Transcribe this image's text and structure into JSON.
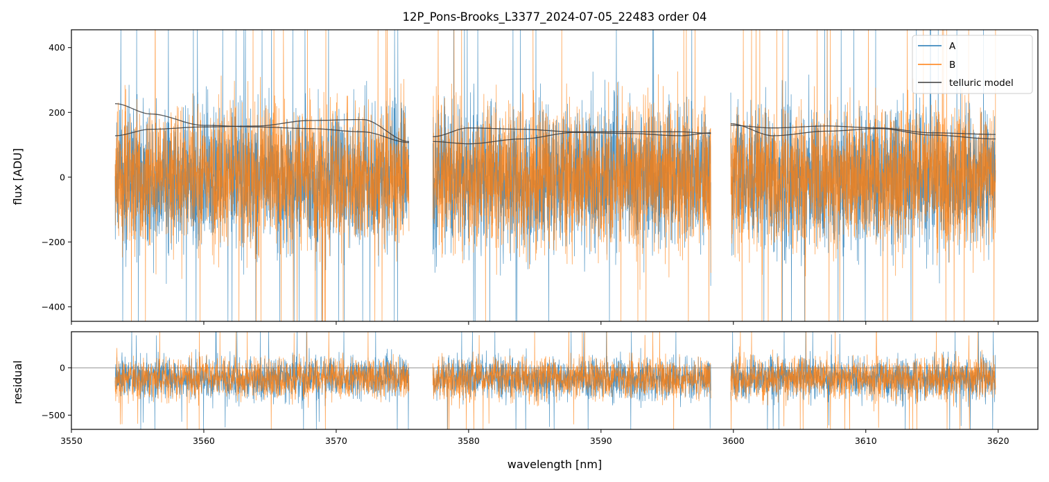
{
  "chart_data": [
    {
      "type": "line",
      "panel": "main",
      "title": "12P_Pons-Brooks_L3377_2024-07-05_22483  order 04",
      "xlabel": "",
      "ylabel": "flux [ADU]",
      "xlim": [
        3550,
        3623
      ],
      "ylim": [
        -445,
        455
      ],
      "yticks": [
        -400,
        -200,
        0,
        200,
        400
      ],
      "ytick_labels": [
        "−400",
        "−200",
        "0",
        "200",
        "400"
      ],
      "grid": false,
      "legend_position": "top-right",
      "segments": [
        [
          3553.3,
          3575.5
        ],
        [
          3577.3,
          3598.3
        ],
        [
          3599.8,
          3619.8
        ]
      ],
      "series": [
        {
          "name": "A",
          "color": "#1f77b4",
          "kind": "noisy",
          "center": 0,
          "spread": 150,
          "clip": [
            -445,
            455
          ]
        },
        {
          "name": "B",
          "color": "#ff7f0e",
          "kind": "noisy",
          "center": 0,
          "spread": 150,
          "clip": [
            -445,
            455
          ]
        },
        {
          "name": "telluric model",
          "color": "#3a3a3a",
          "kind": "smooth",
          "curves": [
            {
              "x": [
                3553.3,
                3556,
                3560,
                3564,
                3568,
                3572,
                3575.5
              ],
              "y": [
                227,
                195,
                160,
                155,
                150,
                140,
                107
              ]
            },
            {
              "x": [
                3553.3,
                3556,
                3560,
                3564,
                3568,
                3572,
                3575.5
              ],
              "y": [
                128,
                148,
                155,
                158,
                175,
                178,
                110
              ]
            },
            {
              "x": [
                3577.3,
                3580,
                3584,
                3588,
                3592,
                3596,
                3598.3
              ],
              "y": [
                110,
                103,
                118,
                138,
                135,
                128,
                137
              ]
            },
            {
              "x": [
                3577.3,
                3580,
                3584,
                3588,
                3592,
                3596,
                3598.3
              ],
              "y": [
                125,
                152,
                148,
                140,
                140,
                140,
                135
              ]
            },
            {
              "x": [
                3599.8,
                3603,
                3607,
                3611,
                3615,
                3619.8
              ],
              "y": [
                160,
                152,
                158,
                152,
                137,
                132
              ]
            },
            {
              "x": [
                3599.8,
                3603,
                3607,
                3611,
                3615,
                3619.8
              ],
              "y": [
                165,
                128,
                142,
                150,
                130,
                118
              ]
            }
          ]
        }
      ]
    },
    {
      "type": "line",
      "panel": "residual",
      "title": "",
      "xlabel": "wavelength [nm]",
      "ylabel": "residual",
      "xlim": [
        3550,
        3623
      ],
      "ylim": [
        -650,
        380
      ],
      "yticks": [
        -500,
        0
      ],
      "ytick_labels": [
        "−500",
        "0"
      ],
      "xticks": [
        3550,
        3560,
        3570,
        3580,
        3590,
        3600,
        3610,
        3620
      ],
      "xtick_labels": [
        "3550",
        "3560",
        "3570",
        "3580",
        "3590",
        "3600",
        "3610",
        "3620"
      ],
      "zero_line": 0,
      "grid": false,
      "segments": [
        [
          3553.3,
          3575.5
        ],
        [
          3577.3,
          3598.3
        ],
        [
          3599.8,
          3619.8
        ]
      ],
      "series": [
        {
          "name": "A",
          "color": "#1f77b4",
          "kind": "noisy",
          "center": -110,
          "spread": 150,
          "clip": [
            -650,
            380
          ]
        },
        {
          "name": "B",
          "color": "#ff7f0e",
          "kind": "noisy",
          "center": -110,
          "spread": 150,
          "clip": [
            -650,
            380
          ]
        }
      ]
    }
  ]
}
